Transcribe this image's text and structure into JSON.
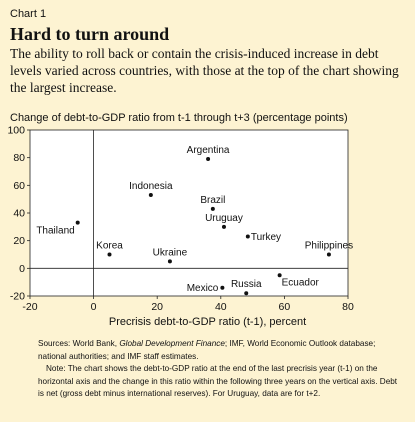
{
  "header": {
    "chart_label": "Chart 1",
    "title": "Hard to turn around",
    "subtitle": "The ability to roll back or contain the crisis-induced increase in debt levels varied across countries, with those at the top of the chart showing the largest increase."
  },
  "footer": {
    "sources_prefix": "Sources: World Bank, ",
    "sources_italic": "Global Development Finance",
    "sources_suffix": "; IMF, World Economic Outlook database; national authorities; and IMF staff estimates.",
    "note": "Note: The chart shows the debt-to-GDP ratio at the end of the last precrisis year (t-1) on the horizontal axis and the change in this ratio within the following three years on the vertical axis. Debt is net (gross debt minus international reserves). For Uruguay, data are for t+2."
  },
  "colors": {
    "background": "#fdf3d2",
    "plot_background": "#ffffff",
    "marker": "#111111"
  },
  "chart_data": {
    "type": "scatter",
    "xlabel": "Precrisis debt-to-GDP ratio (t-1), percent",
    "ylabel": "Change of debt-to-GDP ratio from t-1 through t+3 (percentage points)",
    "xlim": [
      -20,
      80
    ],
    "ylim": [
      -20,
      100
    ],
    "xticks": [
      -20,
      0,
      20,
      40,
      60,
      80
    ],
    "yticks": [
      -20,
      0,
      20,
      40,
      60,
      80,
      100
    ],
    "grid": false,
    "points": [
      {
        "label": "Argentina",
        "x": 36,
        "y": 79,
        "anchor": "above"
      },
      {
        "label": "Indonesia",
        "x": 18,
        "y": 53,
        "anchor": "above"
      },
      {
        "label": "Brazil",
        "x": 37.5,
        "y": 43,
        "anchor": "above"
      },
      {
        "label": "Thailand",
        "x": -5,
        "y": 33,
        "anchor": "below-left"
      },
      {
        "label": "Uruguay",
        "x": 41,
        "y": 30,
        "anchor": "above"
      },
      {
        "label": "Turkey",
        "x": 48.5,
        "y": 23,
        "anchor": "right"
      },
      {
        "label": "Korea",
        "x": 5,
        "y": 10,
        "anchor": "above"
      },
      {
        "label": "Philippines",
        "x": 74,
        "y": 10,
        "anchor": "above"
      },
      {
        "label": "Ukraine",
        "x": 24,
        "y": 5,
        "anchor": "above"
      },
      {
        "label": "Ecuador",
        "x": 58.5,
        "y": -5,
        "anchor": "below-right"
      },
      {
        "label": "Mexico",
        "x": 40.5,
        "y": -14,
        "anchor": "left"
      },
      {
        "label": "Russia",
        "x": 48,
        "y": -18,
        "anchor": "above"
      }
    ]
  }
}
